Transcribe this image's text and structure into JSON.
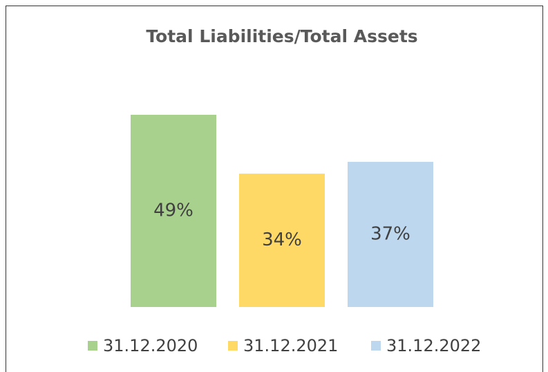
{
  "chart_data": {
    "type": "bar",
    "title": "Total Liabilities/Total Assets",
    "series": [
      {
        "name": "31.12.2020",
        "color": "#a9d18e",
        "values": [
          49
        ],
        "value_labels": [
          "49%"
        ]
      },
      {
        "name": "31.12.2021",
        "color": "#ffd966",
        "values": [
          34
        ],
        "value_labels": [
          "34%"
        ]
      },
      {
        "name": "31.12.2022",
        "color": "#bdd7ee",
        "values": [
          37
        ],
        "value_labels": [
          "37%"
        ]
      }
    ]
  }
}
